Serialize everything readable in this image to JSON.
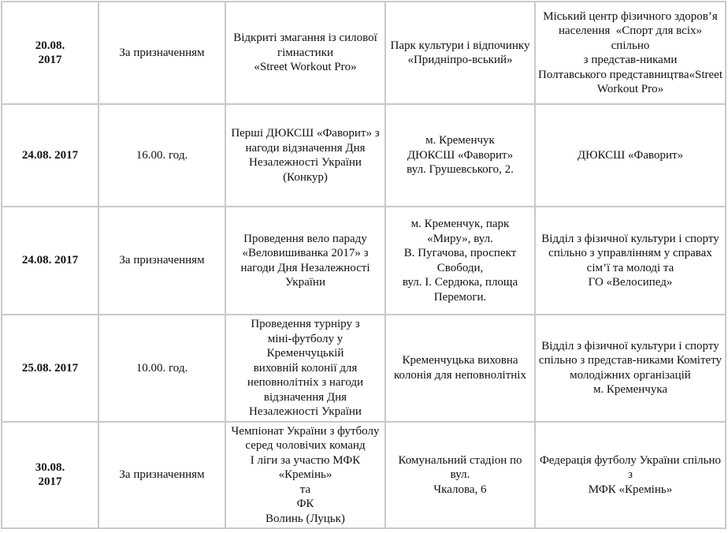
{
  "colors": {
    "border": "#c9c9c9",
    "text": "#111111",
    "background": "#ffffff"
  },
  "table": {
    "rows": [
      {
        "date": "20.08.\n2017",
        "time": "За призначенням",
        "event": "Відкриті змагання із силової\nгімнастики\n«Street Workout Pro»",
        "location": "Парк культури і відпочинку\n«Придніпро-вський»",
        "organizer": "Міський центр фізичного здоров’я\nнаселення  «Спорт для всіх» спільно\nз представ-никами\nПолтавського представництва«Street\nWorkout Pro»"
      },
      {
        "date": "24.08. 2017",
        "time": "16.00. год.",
        "event": "Перші ДЮКСШ «Фаворит» з\nнагоди відзначення Дня\nНезалежності України\n(Конкур)",
        "location": "м. Кременчук\nДЮКСШ «Фаворит»\nвул. Грушевського, 2.",
        "organizer": "ДЮКСШ «Фаворит»"
      },
      {
        "date": "24.08. 2017",
        "time": "За призначенням",
        "event": "Проведення вело параду\n«Веловишиванка 2017» з\nнагоди Дня Незалежності\nУкраїни",
        "location": "м. Кременчук, парк\n«Миру», вул.\nВ. Пугачова, проспект\nСвободи,\nвул. І. Сердюка, площа\nПеремоги.",
        "organizer": "Відділ з фізичної культури і спорту\nспільно з управлінням у справах\nсім’ї та молоді та\nГО «Велосипед»"
      },
      {
        "date": "25.08. 2017",
        "time": "10.00. год.",
        "event": "Проведення турніру з\nміні-футболу у Кременчуцькій\nвиховній колонії для\nнеповнолітніх з нагоди\nвідзначення Дня\nНезалежності України",
        "location": "Кременчуцька виховна\nколонія для неповнолітніх",
        "organizer": "Відділ з фізичної культури і спорту\nспільно з представ-никами Комітету\nмолодіжних організацій\nм. Кременчука"
      },
      {
        "date": "30.08.\n2017",
        "time": "За призначенням",
        "event": "Чемпіонат України з футболу\nсеред чоловічих команд\nІ ліги за участю МФК\n«Кремінь»\nта\nФК\nВолинь (Луцьк)",
        "location": "Комунальний стадіон по\nвул.\nЧкалова, 6",
        "organizer": "Федерація футболу України спільно\nз\nМФК «Кремінь»"
      }
    ]
  }
}
